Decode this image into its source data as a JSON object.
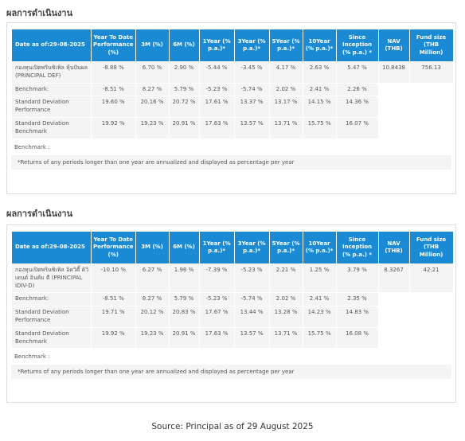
{
  "panels": [
    {
      "title": "ผลการดำเนินงาน",
      "header": [
        "Date as of:29-08-2025",
        "Year To Date Performance (%)",
        "3M (%)",
        "6M (%)",
        "1Year (% p.a.)*",
        "3Year (% p.a.)*",
        "5Year (% p.a.)*",
        "10Year (% p.a.)*",
        "Since Inception (% p.a.) *",
        "NAV (THB)",
        "Fund size (THB Million)"
      ],
      "rows": [
        [
          "กองทุนเปิดพรินซิเพิล หุ้นปันผล (PRINCIPAL DEF)",
          "-8.88 %",
          "6.70 %",
          "2.90 %",
          "-5.44 %",
          "-3.45 %",
          "4.17 %",
          "2.63 %",
          "5.47 %",
          "10.8438",
          "756.13"
        ],
        [
          "Benchmark:",
          "-8.51 %",
          "8.27 %",
          "5.79 %",
          "-5.23 %",
          "-5.74 %",
          "2.02 %",
          "2.41 %",
          "2.26 %"
        ],
        [
          "Standard Deviation Performance",
          "19.60 %",
          "20.16 %",
          "20.72 %",
          "17.61 %",
          "13.37 %",
          "13.17 %",
          "14.15 %",
          "14.36 %"
        ],
        [
          "Standard Deviation Benchmark",
          "19.92 %",
          "19.23 %",
          "20.91 %",
          "17.63 %",
          "13.57 %",
          "13.71 %",
          "15.75 %",
          "16.07 %"
        ]
      ],
      "benchmark_label": "Benchmark :",
      "note": "*Returns of any periods longer than one year are annualized and displayed as percentage per year"
    },
    {
      "title": "ผลการดำเนินงาน",
      "header": [
        "Date as of:29-08-2025",
        "Year To Date Performance (%)",
        "3M (%)",
        "6M (%)",
        "1Year (% p.a.)*",
        "3Year (% p.a.)*",
        "5Year (% p.a.)*",
        "10Year (% p.a.)*",
        "Since Inception (% p.a.) *",
        "NAV (THB)",
        "Fund size (THB Million)"
      ],
      "rows": [
        [
          "กองทุนเปิดพรินซิเพิล อิควิตี้ ดิวิเดนด์ อินคัม ดี (PRINCIPAL iDIV-D)",
          "-10.10 %",
          "6.27 %",
          "1.98 %",
          "-7.39 %",
          "-5.23 %",
          "2.21 %",
          "1.25 %",
          "3.79 %",
          "8.3267",
          "42.21"
        ],
        [
          "Benchmark:",
          "-8.51 %",
          "8.27 %",
          "5.79 %",
          "-5.23 %",
          "-5.74 %",
          "2.02 %",
          "2.41 %",
          "2.35 %"
        ],
        [
          "Standard Deviation Performance",
          "19.71 %",
          "20.12 %",
          "20.83 %",
          "17.67 %",
          "13.44 %",
          "13.28 %",
          "14.23 %",
          "14.83 %"
        ],
        [
          "Standard Deviation Benchmark",
          "19.92 %",
          "19.23 %",
          "20.91 %",
          "17.63 %",
          "13.57 %",
          "13.71 %",
          "15.75 %",
          "16.08 %"
        ]
      ],
      "benchmark_label": "Benchmark :",
      "note": "*Returns of any periods longer than one year are annualized and displayed as percentage per year"
    }
  ],
  "source": "Source: Principal as of 29 August 2025"
}
